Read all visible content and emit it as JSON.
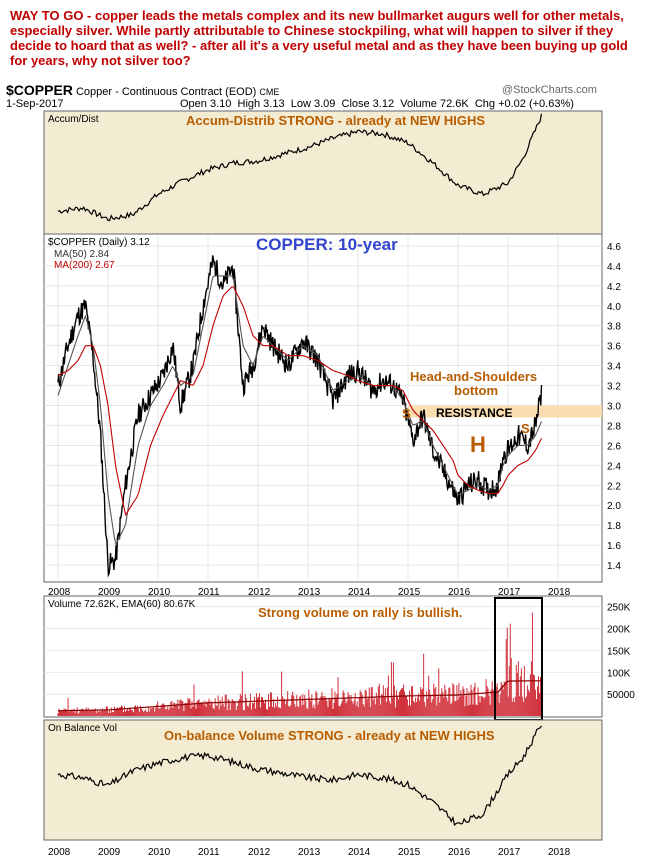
{
  "headline": "WAY TO GO - copper leads the metals complex and its new bullmarket augurs well for other metals, especially silver. While partly attributable to Chinese stockpiling, what will happen to silver if they decide to hoard that as well? - after all it's a very useful metal and as they have been buying up gold for years, why not silver too?",
  "header": {
    "symbol": "$COPPER",
    "description": "Copper - Continuous Contract (EOD)",
    "exchange": "CME",
    "watermark": "@StockCharts.com",
    "date": "1-Sep-2017",
    "open": "Open 3.10",
    "high": "High 3.13",
    "low": "Low 3.09",
    "close": "Close 3.12",
    "volume": "Volume 72.6K",
    "change": "Chg +0.02 (+0.63%)"
  },
  "colors": {
    "orange_text": "#b85c00",
    "blue_title": "#3344cc",
    "ma200": "#c00000",
    "volume": "#d0303a",
    "resistance": "#f9d9a8"
  },
  "chart_data": [
    {
      "type": "line",
      "panel": "accum-dist",
      "legend": "Accum/Dist",
      "annotation": "Accum-Distrib STRONG - already at NEW HIGHS",
      "x": [
        "2008",
        "2008.5",
        "2009",
        "2009.5",
        "2010",
        "2010.5",
        "2011",
        "2011.5",
        "2012",
        "2012.5",
        "2013",
        "2013.5",
        "2014",
        "2014.5",
        "2015",
        "2015.5",
        "2016",
        "2016.5",
        "2017",
        "2017.3",
        "2017.67"
      ],
      "values": [
        0.15,
        0.18,
        0.08,
        0.12,
        0.3,
        0.42,
        0.52,
        0.58,
        0.6,
        0.66,
        0.72,
        0.8,
        0.86,
        0.84,
        0.76,
        0.58,
        0.38,
        0.3,
        0.4,
        0.62,
        1.0
      ]
    },
    {
      "type": "line",
      "panel": "price",
      "title": "COPPER: 10-year",
      "legend": [
        "$COPPER (Daily) 3.12",
        "MA(50) 2.84",
        "MA(200) 2.67"
      ],
      "yticks": [
        1.4,
        1.6,
        1.8,
        2.0,
        2.2,
        2.4,
        2.6,
        2.8,
        3.0,
        3.2,
        3.4,
        3.6,
        3.8,
        4.0,
        4.2,
        4.4,
        4.6
      ],
      "xticks": [
        "2008",
        "2009",
        "2010",
        "2011",
        "2012",
        "2013",
        "2014",
        "2015",
        "2016",
        "2017",
        "2018"
      ],
      "ylim": [
        1.25,
        4.7
      ],
      "x": [
        2008.0,
        2008.2,
        2008.4,
        2008.55,
        2008.7,
        2008.85,
        2009.0,
        2009.15,
        2009.35,
        2009.6,
        2009.85,
        2010.1,
        2010.3,
        2010.45,
        2010.7,
        2010.9,
        2011.1,
        2011.3,
        2011.5,
        2011.7,
        2011.9,
        2012.1,
        2012.3,
        2012.6,
        2012.9,
        2013.2,
        2013.5,
        2013.8,
        2014.0,
        2014.3,
        2014.5,
        2014.7,
        2014.9,
        2015.1,
        2015.3,
        2015.5,
        2015.7,
        2015.9,
        2016.0,
        2016.2,
        2016.4,
        2016.6,
        2016.8,
        2016.9,
        2017.0,
        2017.2,
        2017.4,
        2017.55,
        2017.67
      ],
      "close": [
        3.2,
        3.6,
        3.9,
        4.0,
        3.5,
        2.7,
        1.4,
        1.45,
        2.2,
        2.9,
        3.1,
        3.3,
        3.6,
        3.0,
        3.4,
        4.0,
        4.45,
        4.2,
        4.4,
        3.2,
        3.4,
        3.8,
        3.6,
        3.4,
        3.65,
        3.45,
        3.05,
        3.3,
        3.35,
        3.15,
        3.25,
        3.2,
        3.05,
        2.65,
        2.9,
        2.55,
        2.35,
        2.15,
        2.05,
        2.2,
        2.25,
        2.15,
        2.2,
        2.5,
        2.55,
        2.7,
        2.6,
        2.8,
        3.12
      ],
      "ma50": [
        3.1,
        3.4,
        3.7,
        3.9,
        3.6,
        3.0,
        2.1,
        1.6,
        1.8,
        2.6,
        3.0,
        3.2,
        3.4,
        3.2,
        3.3,
        3.8,
        4.3,
        4.3,
        4.3,
        3.6,
        3.4,
        3.7,
        3.6,
        3.45,
        3.6,
        3.5,
        3.15,
        3.25,
        3.3,
        3.2,
        3.2,
        3.2,
        3.05,
        2.8,
        2.85,
        2.6,
        2.4,
        2.2,
        2.1,
        2.15,
        2.2,
        2.15,
        2.2,
        2.4,
        2.5,
        2.6,
        2.6,
        2.7,
        2.84
      ],
      "ma200": [
        3.3,
        3.35,
        3.45,
        3.6,
        3.6,
        3.4,
        3.0,
        2.4,
        1.9,
        2.1,
        2.6,
        2.9,
        3.1,
        3.25,
        3.2,
        3.4,
        3.8,
        4.1,
        4.2,
        4.0,
        3.7,
        3.6,
        3.6,
        3.5,
        3.5,
        3.45,
        3.35,
        3.3,
        3.25,
        3.2,
        3.2,
        3.2,
        3.15,
        2.95,
        2.85,
        2.75,
        2.6,
        2.45,
        2.3,
        2.2,
        2.15,
        2.12,
        2.12,
        2.2,
        2.3,
        2.4,
        2.45,
        2.55,
        2.67
      ],
      "annotations": [
        "Head-and-Shoulders bottom",
        "RESISTANCE",
        "S",
        "H",
        "S"
      ],
      "resistance_band": [
        2.88,
        3.0
      ]
    },
    {
      "type": "bar",
      "panel": "volume",
      "legend": "Volume 72.62K, EMA(60) 80.67K",
      "annotation": "Strong volume on rally is bullish.",
      "yticks": [
        "50000",
        "100K",
        "150K",
        "200K",
        "250K"
      ],
      "ylim": [
        0,
        270000
      ],
      "x": [
        2008,
        2009,
        2010,
        2011,
        2012,
        2013,
        2014,
        2015,
        2016,
        2016.8,
        2017,
        2017.67
      ],
      "ema": [
        12000,
        14000,
        22000,
        30000,
        34000,
        38000,
        42000,
        46000,
        48000,
        55000,
        80000,
        80670
      ]
    },
    {
      "type": "line",
      "panel": "obv",
      "legend": "On Balance Vol",
      "annotation": "On-balance Volume STRONG - already at NEW HIGHS",
      "xticks": [
        "2008",
        "2009",
        "2010",
        "2011",
        "2012",
        "2013",
        "2014",
        "2015",
        "2016",
        "2017",
        "2018"
      ],
      "x": [
        "2008",
        "2008.5",
        "2009",
        "2009.5",
        "2010",
        "2010.5",
        "2011",
        "2011.5",
        "2012",
        "2012.5",
        "2013",
        "2013.5",
        "2014",
        "2014.5",
        "2015",
        "2015.5",
        "2016",
        "2016.5",
        "2017",
        "2017.3",
        "2017.67"
      ],
      "values": [
        0.55,
        0.52,
        0.45,
        0.58,
        0.65,
        0.7,
        0.72,
        0.66,
        0.6,
        0.56,
        0.52,
        0.5,
        0.55,
        0.52,
        0.46,
        0.3,
        0.1,
        0.2,
        0.55,
        0.7,
        1.0
      ]
    }
  ]
}
